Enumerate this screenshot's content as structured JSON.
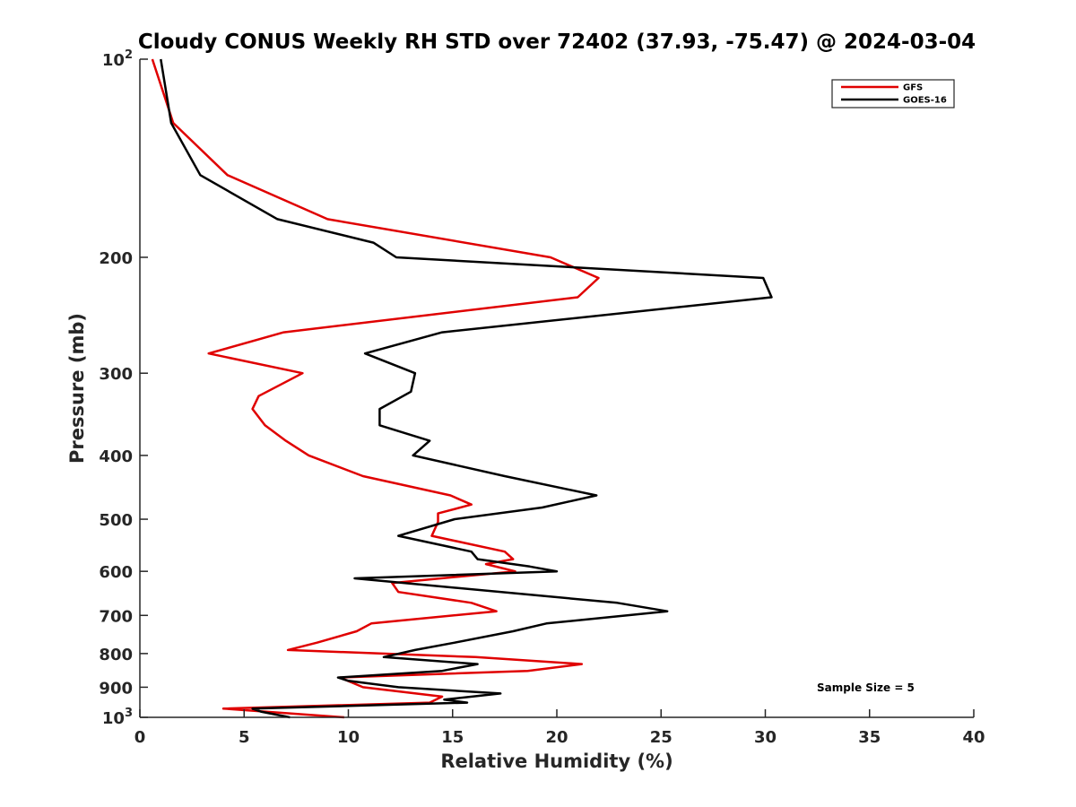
{
  "chart_data": {
    "type": "line",
    "title": "Cloudy CONUS Weekly RH STD over 72402 (37.93, -75.47) @ 2024-03-04",
    "xlabel": "Relative Humidity (%)",
    "ylabel": "Pressure (mb)",
    "xlim": [
      0,
      40
    ],
    "ylim": [
      100,
      1000
    ],
    "yscale": "log",
    "y_reversed": true,
    "x_ticks": [
      "0",
      "5",
      "10",
      "15",
      "20",
      "25",
      "30",
      "35",
      "40"
    ],
    "y_ticks": [
      {
        "value": 100,
        "base": "10",
        "exp": "2"
      },
      {
        "value": 200,
        "label": "200"
      },
      {
        "value": 300,
        "label": "300"
      },
      {
        "value": 400,
        "label": "400"
      },
      {
        "value": 500,
        "label": "500"
      },
      {
        "value": 600,
        "label": "600"
      },
      {
        "value": 700,
        "label": "700"
      },
      {
        "value": 800,
        "label": "800"
      },
      {
        "value": 900,
        "label": "900"
      },
      {
        "value": 1000,
        "base": "10",
        "exp": "3"
      }
    ],
    "grid": false,
    "legend_position": "top-right",
    "annotation": "Sample Size = 5",
    "series": [
      {
        "name": "GFS",
        "color": "#e00000",
        "points": [
          [
            0.6,
            100
          ],
          [
            1.6,
            125
          ],
          [
            4.2,
            150
          ],
          [
            9.0,
            175
          ],
          [
            19.7,
            200
          ],
          [
            22.0,
            215
          ],
          [
            21.0,
            230
          ],
          [
            6.9,
            260
          ],
          [
            3.3,
            280
          ],
          [
            7.8,
            300
          ],
          [
            5.7,
            325
          ],
          [
            5.4,
            340
          ],
          [
            6.0,
            360
          ],
          [
            7.0,
            380
          ],
          [
            8.1,
            400
          ],
          [
            10.7,
            430
          ],
          [
            14.9,
            460
          ],
          [
            15.9,
            475
          ],
          [
            14.3,
            490
          ],
          [
            14.3,
            505
          ],
          [
            14.0,
            530
          ],
          [
            17.5,
            560
          ],
          [
            17.9,
            575
          ],
          [
            16.6,
            585
          ],
          [
            18.0,
            600
          ],
          [
            12.1,
            625
          ],
          [
            12.4,
            645
          ],
          [
            15.9,
            670
          ],
          [
            17.1,
            690
          ],
          [
            11.1,
            720
          ],
          [
            10.4,
            740
          ],
          [
            8.5,
            770
          ],
          [
            7.1,
            790
          ],
          [
            16.1,
            810
          ],
          [
            21.2,
            830
          ],
          [
            18.6,
            850
          ],
          [
            9.6,
            870
          ],
          [
            10.7,
            900
          ],
          [
            14.5,
            930
          ],
          [
            13.9,
            950
          ],
          [
            4.0,
            970
          ],
          [
            9.8,
            1000
          ]
        ]
      },
      {
        "name": "GOES-16",
        "color": "#000000",
        "points": [
          [
            1.0,
            100
          ],
          [
            1.5,
            125
          ],
          [
            2.9,
            150
          ],
          [
            6.6,
            175
          ],
          [
            11.2,
            190
          ],
          [
            12.3,
            200
          ],
          [
            29.9,
            215
          ],
          [
            30.3,
            230
          ],
          [
            14.5,
            260
          ],
          [
            10.8,
            280
          ],
          [
            13.2,
            300
          ],
          [
            13.0,
            320
          ],
          [
            11.5,
            340
          ],
          [
            11.5,
            360
          ],
          [
            13.9,
            380
          ],
          [
            13.1,
            400
          ],
          [
            17.5,
            430
          ],
          [
            21.9,
            460
          ],
          [
            19.3,
            480
          ],
          [
            15.1,
            500
          ],
          [
            12.4,
            530
          ],
          [
            15.9,
            560
          ],
          [
            16.2,
            575
          ],
          [
            18.7,
            590
          ],
          [
            20.0,
            600
          ],
          [
            10.3,
            615
          ],
          [
            22.9,
            670
          ],
          [
            25.3,
            690
          ],
          [
            19.5,
            720
          ],
          [
            17.9,
            740
          ],
          [
            15.1,
            770
          ],
          [
            13.2,
            790
          ],
          [
            11.7,
            810
          ],
          [
            16.2,
            830
          ],
          [
            14.5,
            850
          ],
          [
            9.5,
            870
          ],
          [
            10.0,
            880
          ],
          [
            12.4,
            900
          ],
          [
            17.3,
            920
          ],
          [
            14.6,
            940
          ],
          [
            15.7,
            950
          ],
          [
            5.4,
            970
          ],
          [
            5.8,
            980
          ],
          [
            7.2,
            1000
          ]
        ]
      }
    ]
  }
}
